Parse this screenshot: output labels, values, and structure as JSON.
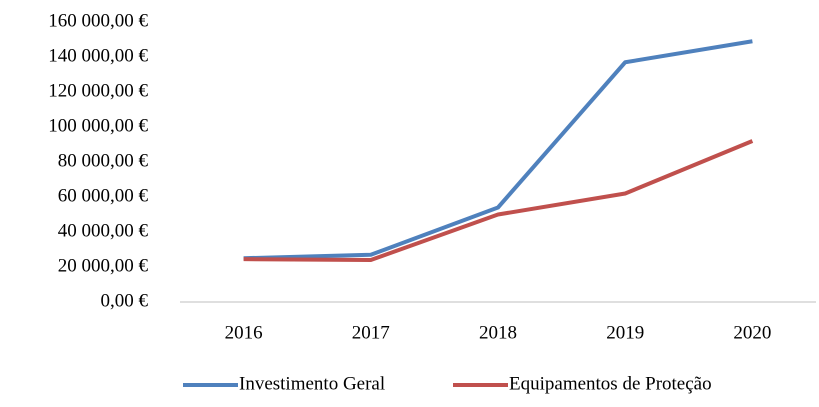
{
  "chart_data": {
    "type": "line",
    "categories": [
      "2016",
      "2017",
      "2018",
      "2019",
      "2020"
    ],
    "series": [
      {
        "name": "Investimento Geral",
        "color": "#4f81bd",
        "values": [
          25000,
          27000,
          54000,
          137000,
          149000
        ]
      },
      {
        "name": "Equipamentos de Proteção",
        "color": "#c0504d",
        "values": [
          24500,
          24000,
          50000,
          62000,
          92000
        ]
      }
    ],
    "ylim": [
      0,
      160000
    ],
    "yticks": [
      {
        "value": 0,
        "label": "0,00 €"
      },
      {
        "value": 20000,
        "label": "20 000,00 €"
      },
      {
        "value": 40000,
        "label": "40 000,00 €"
      },
      {
        "value": 60000,
        "label": "60 000,00 €"
      },
      {
        "value": 80000,
        "label": "80 000,00 €"
      },
      {
        "value": 100000,
        "label": "100 000,00 €"
      },
      {
        "value": 120000,
        "label": "120 000,00 €"
      },
      {
        "value": 140000,
        "label": "140 000,00 €"
      },
      {
        "value": 160000,
        "label": "160 000,00 €"
      }
    ],
    "grid": false,
    "legend": "bottom"
  }
}
